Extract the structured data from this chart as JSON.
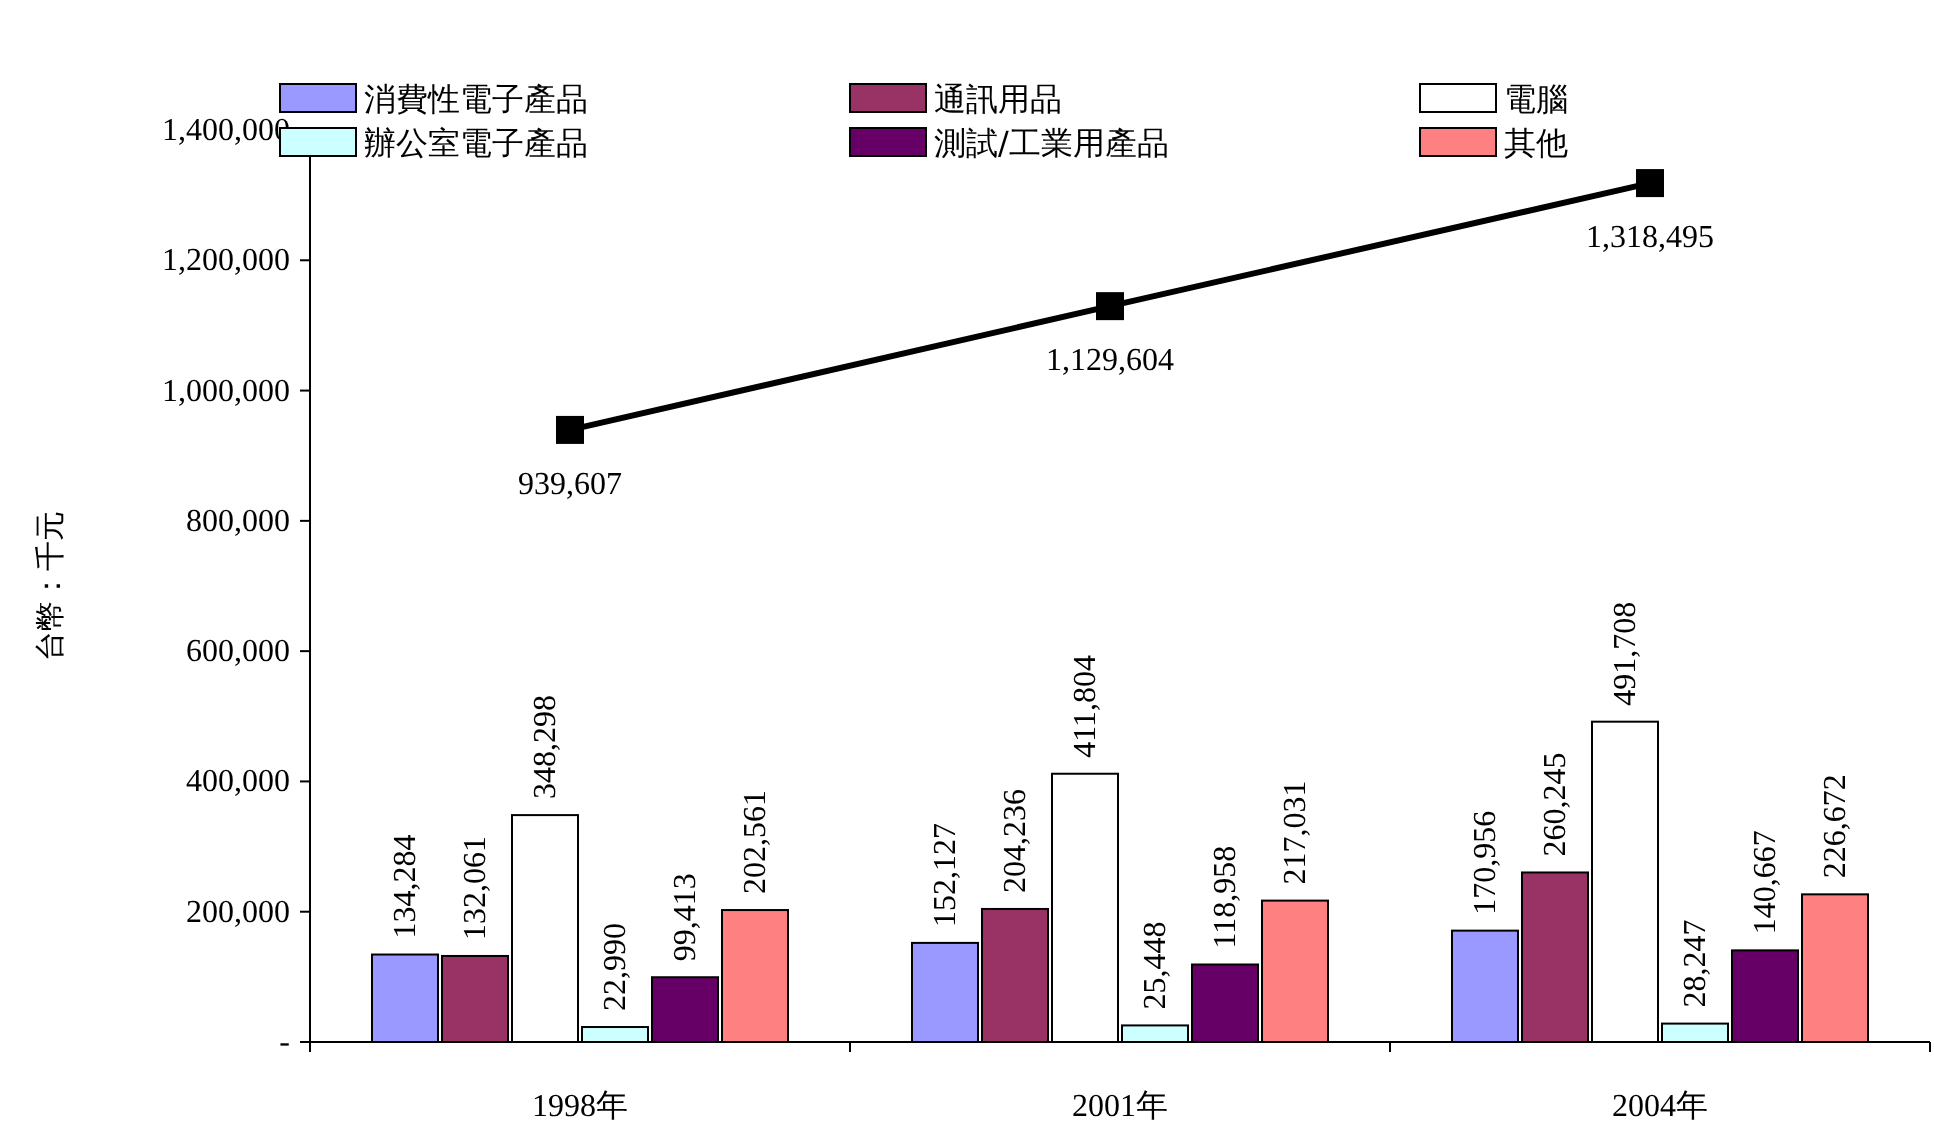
{
  "chart_data": {
    "type": "bar",
    "ylabel": "台幣：千元",
    "categories": [
      "1998年",
      "2001年",
      "2004年"
    ],
    "series": [
      {
        "name": "消費性電子產品",
        "color": "#9999ff",
        "values": [
          134284,
          152127,
          170956
        ],
        "value_labels": [
          "134,284",
          "152,127",
          "170,956"
        ]
      },
      {
        "name": "通訊用品",
        "color": "#993366",
        "values": [
          132061,
          204236,
          260245
        ],
        "value_labels": [
          "132,061",
          "204,236",
          "260,245"
        ]
      },
      {
        "name": "電腦",
        "color": "#ffffff",
        "values": [
          348298,
          411804,
          491708
        ],
        "value_labels": [
          "348,298",
          "411,804",
          "491,708"
        ]
      },
      {
        "name": "辦公室電子產品",
        "color": "#ccffff",
        "values": [
          22990,
          25448,
          28247
        ],
        "value_labels": [
          "22,990",
          "25,448",
          "28,247"
        ]
      },
      {
        "name": "測試/工業用產品",
        "color": "#660066",
        "values": [
          99413,
          118958,
          140667
        ],
        "value_labels": [
          "99,413",
          "118,958",
          "140,667"
        ]
      },
      {
        "name": "其他",
        "color": "#ff8080",
        "values": [
          202561,
          217031,
          226672
        ],
        "value_labels": [
          "202,561",
          "217,031",
          "226,672"
        ]
      },
      {
        "type": "line",
        "color": "#000000",
        "marker": "square",
        "values": [
          939607,
          1129604,
          1318495
        ],
        "value_labels": [
          "939,607",
          "1,129,604",
          "1,318,495"
        ]
      }
    ],
    "ylim": [
      0,
      1400000
    ],
    "yticks": [
      {
        "value": 0,
        "label": "-"
      },
      {
        "value": 200000,
        "label": "200,000"
      },
      {
        "value": 400000,
        "label": "400,000"
      },
      {
        "value": 600000,
        "label": "600,000"
      },
      {
        "value": 800000,
        "label": "800,000"
      },
      {
        "value": 1000000,
        "label": "1,000,000"
      },
      {
        "value": 1200000,
        "label": "1,200,000"
      },
      {
        "value": 1400000,
        "label": "1,400,000"
      }
    ],
    "grid": false,
    "legend": "top"
  }
}
